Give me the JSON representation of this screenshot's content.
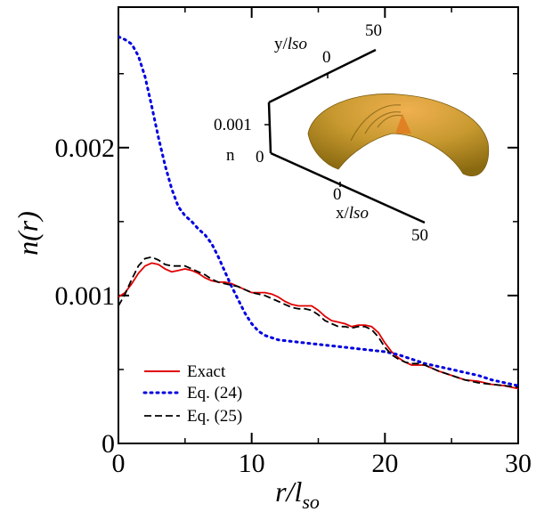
{
  "chart_data": {
    "type": "line",
    "xlabel": "r/l",
    "xlabel_sub": "so",
    "ylabel": "n(r)",
    "xlim": [
      0,
      30
    ],
    "ylim": [
      0,
      0.00295
    ],
    "x_ticks": [
      0,
      10,
      20,
      30
    ],
    "x_tick_labels": [
      "0",
      "10",
      "20",
      "30"
    ],
    "y_ticks": [
      0,
      0.001,
      0.002
    ],
    "y_tick_labels": [
      "0",
      "0.001",
      "0.002"
    ],
    "grid": false,
    "legend_position": "bottom-left",
    "series": [
      {
        "name": "Exact",
        "color": "#e00000",
        "style": "solid",
        "x": [
          0,
          0.5,
          1,
          1.5,
          2,
          2.5,
          3,
          3.5,
          4,
          4.5,
          5,
          5.5,
          6,
          6.5,
          7,
          7.5,
          8,
          8.5,
          9,
          9.5,
          10,
          10.5,
          11,
          11.5,
          12,
          12.5,
          13,
          13.5,
          14,
          14.5,
          15,
          15.5,
          16,
          16.5,
          17,
          17.5,
          18,
          18.5,
          19,
          19.5,
          20,
          20.5,
          21,
          21.5,
          22,
          22.5,
          23,
          23.5,
          24,
          25,
          26,
          27,
          28,
          29,
          30
        ],
        "y": [
          0.00099,
          0.00102,
          0.00108,
          0.00115,
          0.0012,
          0.00122,
          0.00121,
          0.00118,
          0.00116,
          0.00117,
          0.00118,
          0.00117,
          0.00115,
          0.00112,
          0.0011,
          0.00109,
          0.00109,
          0.00108,
          0.00106,
          0.00104,
          0.00102,
          0.00102,
          0.00102,
          0.00101,
          0.00099,
          0.00096,
          0.00094,
          0.00093,
          0.00093,
          0.00093,
          0.0009,
          0.00086,
          0.00083,
          0.00082,
          0.00081,
          0.00079,
          0.0008,
          0.0008,
          0.00079,
          0.00075,
          0.00068,
          0.00062,
          0.00058,
          0.00055,
          0.00053,
          0.00053,
          0.00053,
          0.00051,
          0.00049,
          0.00046,
          0.00043,
          0.00042,
          0.0004,
          0.00039,
          0.00037
        ]
      },
      {
        "name": "Eq. (24)",
        "color": "#0000e0",
        "style": "dotted",
        "x": [
          0,
          0.5,
          1,
          1.5,
          2,
          2.5,
          3,
          3.5,
          4,
          4.5,
          5,
          5.5,
          6,
          6.5,
          7,
          7.5,
          8,
          8.5,
          9,
          9.5,
          10,
          10.5,
          11,
          12,
          13,
          14,
          15,
          16,
          17,
          18,
          19,
          20,
          21,
          22,
          23,
          24,
          25,
          26,
          27,
          28,
          29,
          30
        ],
        "y": [
          0.00275,
          0.00273,
          0.0027,
          0.00262,
          0.00248,
          0.00228,
          0.00207,
          0.00188,
          0.00172,
          0.0016,
          0.00154,
          0.0015,
          0.00145,
          0.00141,
          0.00135,
          0.00126,
          0.00116,
          0.00106,
          0.00097,
          0.00088,
          0.00081,
          0.00076,
          0.00073,
          0.0007,
          0.00069,
          0.00068,
          0.00067,
          0.00066,
          0.00065,
          0.00064,
          0.00063,
          0.00062,
          0.0006,
          0.00057,
          0.00054,
          0.00052,
          0.0005,
          0.00048,
          0.00046,
          0.00043,
          0.00041,
          0.00039
        ]
      },
      {
        "name": "Eq. (25)",
        "color": "#000000",
        "style": "dashed",
        "x": [
          0,
          0.5,
          1,
          1.5,
          2,
          2.5,
          3,
          3.5,
          4,
          4.5,
          5,
          5.5,
          6,
          6.5,
          7,
          7.5,
          8,
          8.5,
          9,
          9.5,
          10,
          10.5,
          11,
          11.5,
          12,
          12.5,
          13,
          13.5,
          14,
          14.5,
          15,
          15.5,
          16,
          16.5,
          17,
          17.5,
          18,
          18.5,
          19,
          19.5,
          20,
          20.5,
          21,
          21.5,
          22,
          22.5,
          23,
          23.5,
          24,
          25,
          26,
          27,
          28,
          29,
          30
        ],
        "y": [
          0.00093,
          0.00101,
          0.00111,
          0.0012,
          0.00125,
          0.00126,
          0.00124,
          0.00121,
          0.0012,
          0.0012,
          0.0012,
          0.00118,
          0.00116,
          0.00114,
          0.00111,
          0.00109,
          0.00108,
          0.00107,
          0.00106,
          0.00104,
          0.00102,
          0.00101,
          0.001,
          0.00098,
          0.00096,
          0.00094,
          0.00092,
          0.00091,
          0.00091,
          0.0009,
          0.00087,
          0.00083,
          0.00081,
          0.00079,
          0.00079,
          0.00078,
          0.00079,
          0.00079,
          0.00077,
          0.00072,
          0.00065,
          0.0006,
          0.00057,
          0.00055,
          0.00054,
          0.00054,
          0.00053,
          0.00051,
          0.00049,
          0.00046,
          0.00043,
          0.00041,
          0.0004,
          0.00039,
          0.00038
        ]
      }
    ]
  },
  "inset": {
    "y_axis_label": "y/",
    "y_axis_label_italic": "lso",
    "x_axis_label": "x/",
    "x_axis_label_italic": "lso",
    "n_axis_label": "n",
    "y_tick_0": "0",
    "y_tick_50": "50",
    "x_tick_0": "0",
    "x_tick_50": "50",
    "n_tick_0": "0",
    "n_tick_0001": "0.001",
    "surface_colors": [
      "#8a6a10",
      "#c89a30",
      "#e8b050",
      "#f0a040"
    ]
  }
}
